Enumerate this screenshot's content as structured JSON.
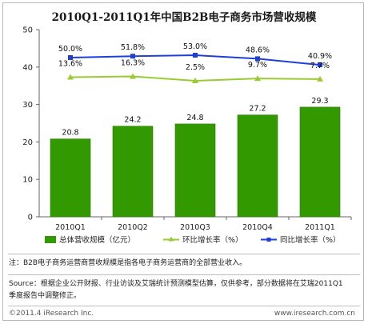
{
  "chart_data": {
    "type": "bar",
    "title": "2010Q1-2011Q1年中国B2B电子商务市场营收规模",
    "categories": [
      "2010Q1",
      "2010Q2",
      "2010Q3",
      "2010Q4",
      "2011Q1"
    ],
    "ylim": [
      0,
      50
    ],
    "yticks": [
      "0",
      "10",
      "20",
      "30",
      "40",
      "50"
    ],
    "series": [
      {
        "name": "总体营收规模（亿元）",
        "kind": "bar",
        "color": "#339900",
        "values": [
          20.8,
          24.2,
          24.8,
          27.2,
          29.3
        ],
        "labels": [
          "20.8",
          "24.2",
          "24.8",
          "27.2",
          "29.3"
        ]
      },
      {
        "name": "环比增长率（%）",
        "kind": "line",
        "color": "#99cc33",
        "marker": "triangle",
        "values": [
          13.6,
          16.3,
          2.5,
          9.7,
          7.7
        ],
        "labels": [
          "13.6%",
          "16.3%",
          "2.5%",
          "9.7%",
          "7.7%"
        ]
      },
      {
        "name": "同比增长率（%）",
        "kind": "line",
        "color": "#1f3fd8",
        "marker": "square",
        "values": [
          50.0,
          51.8,
          53.0,
          48.6,
          40.9
        ],
        "labels": [
          "50.0%",
          "51.8%",
          "53.0%",
          "48.6%",
          "40.9%"
        ]
      }
    ],
    "grid": false,
    "legend": "bottom"
  },
  "note": "注：B2B电子商务运营商营收规模是指各电子商务运营商的全部营业收入。",
  "source_line1": "Source：根据企业公开财报、行业访谈及艾瑞统计预测模型估算，仅供参考，部分数据将在艾瑞2011Q1",
  "source_line2": "季度报告中调整修正。",
  "footer_left": "©2011.4 iResearch Inc.",
  "footer_right": "www.iresearch.com.cn"
}
